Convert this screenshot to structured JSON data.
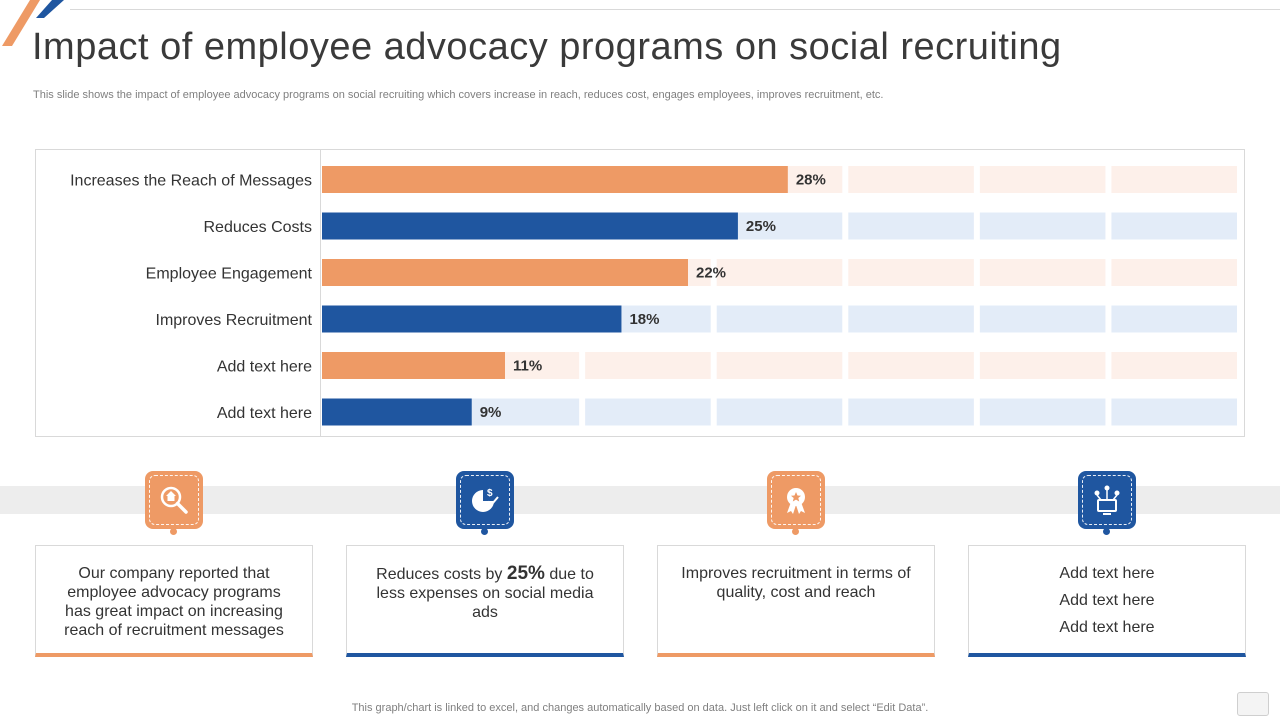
{
  "page": {
    "title": "Impact of employee advocacy programs on social recruiting",
    "subtitle": "This slide shows the impact of employee advocacy programs on social recruiting which covers increase in reach, reduces cost, engages employees, improves recruitment, etc.",
    "footer": "This graph/chart is linked to excel,  and changes automatically based on data. Just left click on it and select “Edit Data”."
  },
  "colors": {
    "orange": "#ee9a65",
    "blue": "#1f56a0",
    "orange_light": "#fdf0ea",
    "blue_light": "#e3ecf8"
  },
  "chart_data": {
    "type": "bar",
    "orientation": "horizontal",
    "categories": [
      "Increases the Reach of Messages",
      "Reduces Costs",
      "Employee Engagement",
      "Improves Recruitment",
      "Add text here",
      "Add text here"
    ],
    "values": [
      28,
      25,
      22,
      18,
      11,
      9
    ],
    "value_labels": [
      "28%",
      "25%",
      "22%",
      "18%",
      "11%",
      "9%"
    ],
    "bar_colors": [
      "orange",
      "blue",
      "orange",
      "blue",
      "orange",
      "blue"
    ],
    "xlim": [
      0,
      55
    ],
    "unit": "%",
    "background_segments": 7,
    "grid": false,
    "legend": "none"
  },
  "icons": [
    "search-home-icon",
    "cost-pie-chart-icon",
    "award-ribbon-icon",
    "network-monitor-icon"
  ],
  "cards": [
    {
      "text": "Our company reported that employee advocacy programs has great impact on increasing reach of recruitment messages"
    },
    {
      "pre": "Reduces costs by ",
      "highlight": "25%",
      "post": " due to less expenses on social media ads"
    },
    {
      "text": "Improves recruitment in terms of quality, cost and reach"
    },
    {
      "lines": [
        "Add text here",
        "Add text here",
        "Add text here"
      ]
    }
  ]
}
